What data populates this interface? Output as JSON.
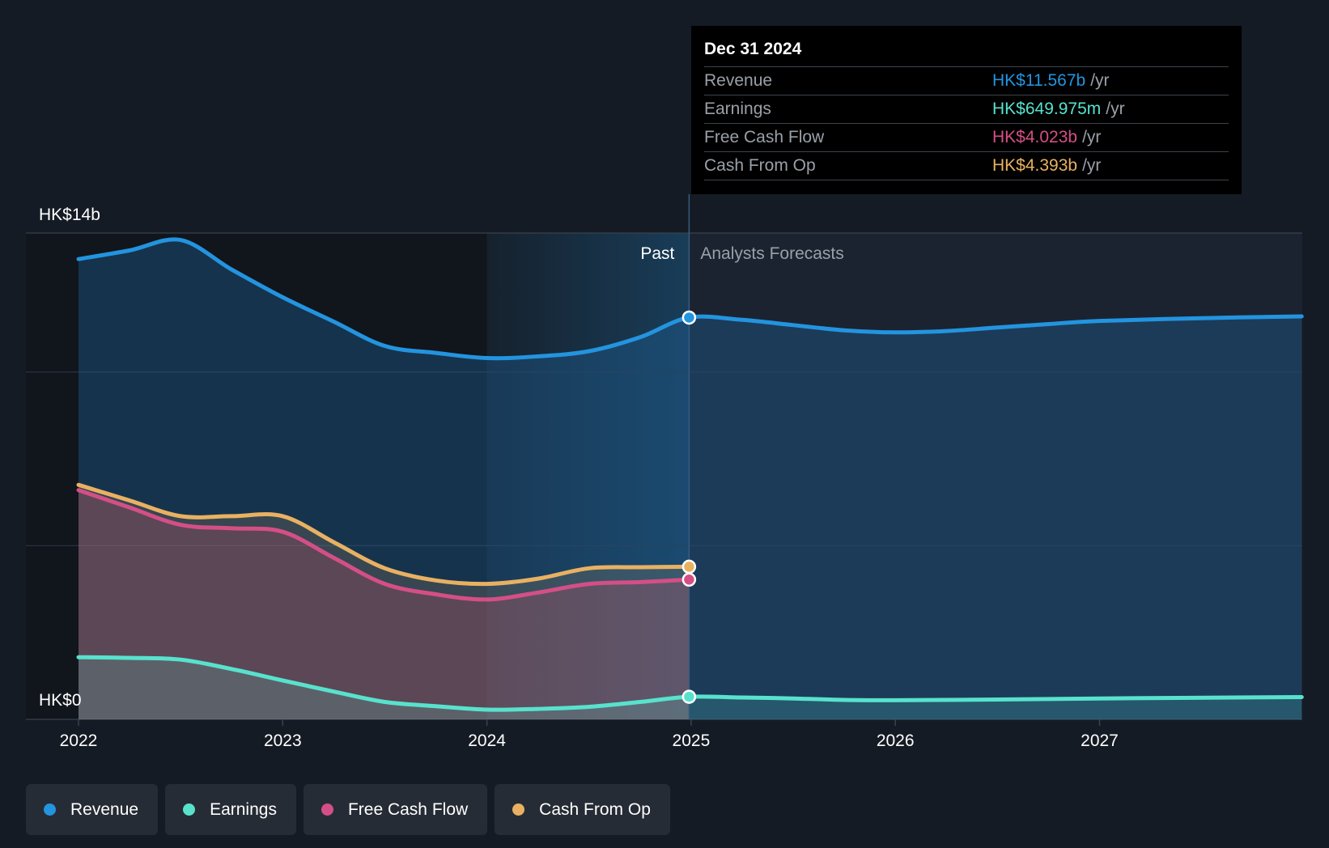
{
  "chart_data": {
    "type": "area",
    "y_axis": {
      "max_label": "HK$14b",
      "min_label": "HK$0",
      "ylim": [
        0,
        14
      ],
      "unit": "HK$ billions"
    },
    "x_axis": {
      "ticks": [
        "2022",
        "2023",
        "2024",
        "2025",
        "2026",
        "2027"
      ],
      "xlim": [
        2022.0,
        2027.99
      ]
    },
    "region_labels": {
      "past": "Past",
      "forecast": "Analysts Forecasts"
    },
    "divider_x": 2024.99,
    "highlight_start_x": 2024.0,
    "series": [
      {
        "name": "Revenue",
        "color": "#2394df",
        "points": [
          [
            2022.0,
            13.25
          ],
          [
            2022.25,
            13.5
          ],
          [
            2022.5,
            13.8
          ],
          [
            2022.75,
            12.95
          ],
          [
            2023.0,
            12.15
          ],
          [
            2023.25,
            11.45
          ],
          [
            2023.5,
            10.75
          ],
          [
            2023.75,
            10.55
          ],
          [
            2024.0,
            10.4
          ],
          [
            2024.25,
            10.45
          ],
          [
            2024.5,
            10.6
          ],
          [
            2024.75,
            11.0
          ],
          [
            2024.99,
            11.567
          ],
          [
            2025.25,
            11.5
          ],
          [
            2025.5,
            11.35
          ],
          [
            2025.75,
            11.2
          ],
          [
            2026.0,
            11.14
          ],
          [
            2026.25,
            11.18
          ],
          [
            2026.5,
            11.28
          ],
          [
            2026.75,
            11.38
          ],
          [
            2027.0,
            11.47
          ],
          [
            2027.5,
            11.55
          ],
          [
            2027.99,
            11.6
          ]
        ]
      },
      {
        "name": "Cash From Op",
        "color": "#e8b162",
        "points": [
          [
            2022.0,
            6.75
          ],
          [
            2022.25,
            6.3
          ],
          [
            2022.5,
            5.85
          ],
          [
            2022.75,
            5.85
          ],
          [
            2023.0,
            5.85
          ],
          [
            2023.25,
            5.1
          ],
          [
            2023.5,
            4.35
          ],
          [
            2023.75,
            4.0
          ],
          [
            2024.0,
            3.9
          ],
          [
            2024.25,
            4.05
          ],
          [
            2024.5,
            4.35
          ],
          [
            2024.75,
            4.38
          ],
          [
            2024.99,
            4.393
          ]
        ]
      },
      {
        "name": "Free Cash Flow",
        "color": "#d44f86",
        "points": [
          [
            2022.0,
            6.6
          ],
          [
            2022.25,
            6.1
          ],
          [
            2022.5,
            5.6
          ],
          [
            2022.75,
            5.5
          ],
          [
            2023.0,
            5.4
          ],
          [
            2023.25,
            4.65
          ],
          [
            2023.5,
            3.9
          ],
          [
            2023.75,
            3.6
          ],
          [
            2024.0,
            3.45
          ],
          [
            2024.25,
            3.65
          ],
          [
            2024.5,
            3.9
          ],
          [
            2024.75,
            3.95
          ],
          [
            2024.99,
            4.023
          ]
        ]
      },
      {
        "name": "Earnings",
        "color": "#58e2cd",
        "points": [
          [
            2022.0,
            1.79
          ],
          [
            2022.25,
            1.77
          ],
          [
            2022.5,
            1.72
          ],
          [
            2022.75,
            1.45
          ],
          [
            2023.0,
            1.12
          ],
          [
            2023.25,
            0.8
          ],
          [
            2023.5,
            0.5
          ],
          [
            2023.75,
            0.38
          ],
          [
            2024.0,
            0.28
          ],
          [
            2024.25,
            0.3
          ],
          [
            2024.5,
            0.36
          ],
          [
            2024.75,
            0.5
          ],
          [
            2024.99,
            0.65
          ],
          [
            2025.25,
            0.63
          ],
          [
            2025.5,
            0.6
          ],
          [
            2025.75,
            0.56
          ],
          [
            2026.0,
            0.55
          ],
          [
            2026.5,
            0.57
          ],
          [
            2027.0,
            0.6
          ],
          [
            2027.99,
            0.64
          ]
        ]
      }
    ]
  },
  "tooltip": {
    "date": "Dec 31 2024",
    "rows": [
      {
        "label": "Revenue",
        "value": "HK$11.567b",
        "unit": "/yr",
        "color": "#2394df"
      },
      {
        "label": "Earnings",
        "value": "HK$649.975m",
        "unit": "/yr",
        "color": "#58e2cd"
      },
      {
        "label": "Free Cash Flow",
        "value": "HK$4.023b",
        "unit": "/yr",
        "color": "#d44f86"
      },
      {
        "label": "Cash From Op",
        "value": "HK$4.393b",
        "unit": "/yr",
        "color": "#e8b162"
      }
    ]
  },
  "legend": [
    {
      "label": "Revenue",
      "color": "#2394df"
    },
    {
      "label": "Earnings",
      "color": "#58e2cd"
    },
    {
      "label": "Free Cash Flow",
      "color": "#d44f86"
    },
    {
      "label": "Cash From Op",
      "color": "#e8b162"
    }
  ]
}
